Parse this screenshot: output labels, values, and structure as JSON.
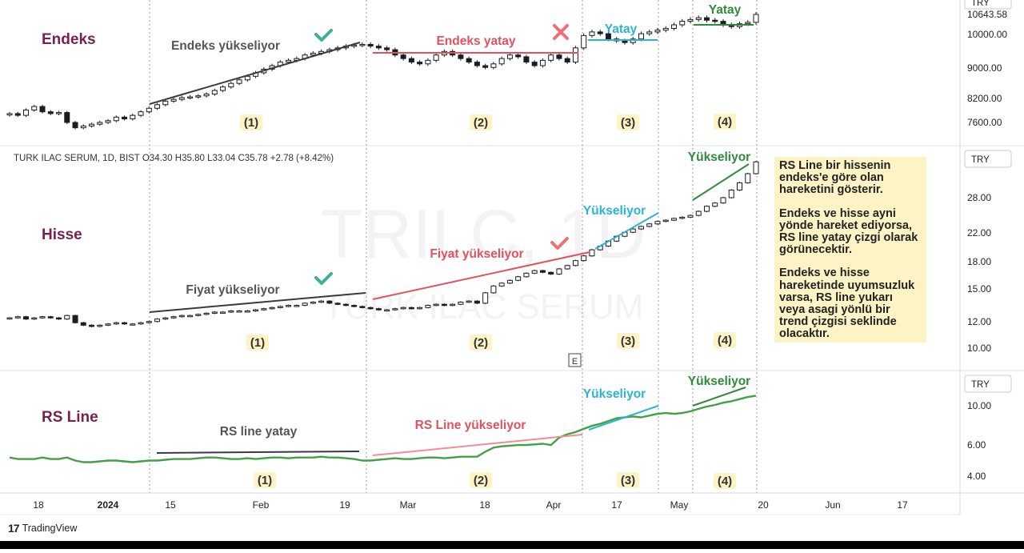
{
  "chart_data": {
    "type": "candlestick",
    "axis_currency": "TRY",
    "x_ticks": [
      "18",
      "2024",
      "15",
      "Feb",
      "19",
      "Mar",
      "18",
      "Apr",
      "17",
      "May",
      "20",
      "Jun",
      "17"
    ],
    "panels": [
      {
        "id": "endeks",
        "label": "Endeks",
        "y_ticks": [
          "10643.58",
          "10000.00",
          "9000.00",
          "8200.00",
          "7600.00"
        ],
        "y_tick_values": [
          10643.58,
          10000,
          9000,
          8200,
          7600
        ],
        "ylim": [
          7200,
          11100
        ],
        "annotations": {
          "seg1": "Endeks yükseliyor",
          "seg2": "Endeks yatay",
          "seg3": "Yatay",
          "seg4": "Yatay",
          "num1": "(1)",
          "num2": "(2)",
          "num3": "(3)",
          "num4": "(4)"
        },
        "marks": {
          "seg1": "check",
          "seg2": "cross"
        },
        "closes": [
          7850,
          7800,
          7950,
          8050,
          7900,
          7850,
          7880,
          7600,
          7450,
          7500,
          7550,
          7600,
          7650,
          7750,
          7700,
          7800,
          7900,
          8000,
          8100,
          8200,
          8250,
          8300,
          8320,
          8350,
          8400,
          8500,
          8600,
          8700,
          8800,
          8900,
          9000,
          9100,
          9200,
          9300,
          9350,
          9400,
          9500,
          9550,
          9600,
          9650,
          9700,
          9750,
          9780,
          9800,
          9750,
          9700,
          9650,
          9500,
          9400,
          9300,
          9250,
          9350,
          9500,
          9600,
          9500,
          9400,
          9300,
          9200,
          9150,
          9250,
          9400,
          9500,
          9450,
          9300,
          9200,
          9350,
          9500,
          9400,
          9300,
          9700,
          10050,
          10150,
          10100,
          9950,
          9900,
          9850,
          9950,
          10100,
          10150,
          10200,
          10250,
          10350,
          10450,
          10500,
          10550,
          10480,
          10450,
          10350,
          10300,
          10380,
          10420,
          10643.58
        ]
      },
      {
        "id": "hisse",
        "label": "Hisse",
        "y_ticks": [
          "28.00",
          "22.00",
          "18.00",
          "15.00",
          "12.00",
          "10.00"
        ],
        "y_tick_values": [
          28,
          22,
          18,
          15,
          12,
          10
        ],
        "ylim": [
          9.2,
          38
        ],
        "log": true,
        "ohlc": {
          "symbol": "TURK ILAC SERUM, 1D, BIST",
          "o": "34.30",
          "h": "35.80",
          "l": "33.04",
          "c": "35.78",
          "chg": "+2.78 (+8.42%)"
        },
        "watermark": {
          "main": "TRILC, 1D",
          "sub": "TURK ILAC SERUM"
        },
        "annotations": {
          "seg1": "Fiyat yükseliyor",
          "seg2": "Fiyat yükseliyor",
          "seg3": "Yükseliyor",
          "seg4": "Yükseliyor",
          "num1": "(1)",
          "num2": "(2)",
          "num3": "(3)",
          "num4": "(4)",
          "event": "E"
        },
        "marks": {
          "seg1": "check",
          "seg2": "check"
        },
        "closes": [
          12.3,
          12.4,
          12.2,
          12.3,
          12.4,
          12.3,
          12.2,
          12.5,
          11.9,
          11.7,
          11.6,
          11.7,
          11.8,
          11.9,
          11.8,
          11.8,
          11.9,
          12.0,
          12.2,
          12.3,
          12.4,
          12.5,
          12.5,
          12.6,
          12.7,
          12.8,
          12.8,
          12.9,
          12.9,
          12.9,
          13.0,
          13.1,
          13.2,
          13.3,
          13.4,
          13.4,
          13.6,
          13.7,
          13.8,
          13.6,
          13.5,
          13.4,
          13.3,
          13.2,
          13.1,
          13.0,
          13.0,
          13.1,
          13.2,
          13.1,
          13.2,
          13.4,
          13.5,
          13.4,
          13.5,
          13.7,
          13.8,
          13.6,
          14.6,
          15.3,
          15.6,
          15.9,
          16.3,
          16.7,
          17.0,
          16.8,
          16.6,
          17.2,
          17.6,
          18.2,
          18.8,
          19.6,
          20.1,
          20.8,
          21.5,
          22.1,
          22.6,
          23.0,
          23.4,
          23.8,
          24.0,
          24.3,
          24.5,
          24.8,
          25.5,
          26.4,
          27.0,
          28.0,
          29.5,
          31.0,
          33.0,
          35.78
        ]
      },
      {
        "id": "rsline",
        "label": "RS Line",
        "y_ticks": [
          "10.00",
          "6.00",
          "4.00"
        ],
        "y_tick_values": [
          10,
          6,
          4
        ],
        "ylim": [
          3.2,
          13
        ],
        "log": true,
        "annotations": {
          "seg1": "RS line yatay",
          "seg2": "RS Line yükseliyor",
          "seg3": "Yükseliyor",
          "seg4": "Yükseliyor",
          "num1": "(1)",
          "num2": "(2)",
          "num3": "(3)",
          "num4": "(4)"
        },
        "values": [
          5.1,
          5.0,
          5.0,
          5.0,
          5.1,
          5.0,
          5.0,
          5.1,
          4.9,
          4.8,
          4.8,
          4.85,
          4.9,
          4.9,
          4.85,
          4.8,
          4.85,
          4.9,
          4.9,
          4.95,
          5.0,
          5.0,
          5.0,
          5.05,
          5.1,
          5.1,
          5.05,
          5.0,
          5.0,
          5.05,
          5.0,
          5.05,
          5.1,
          5.1,
          5.05,
          5.1,
          5.1,
          5.1,
          5.15,
          5.1,
          5.1,
          5.05,
          5.0,
          4.9,
          4.9,
          4.95,
          5.0,
          5.05,
          5.0,
          5.0,
          5.05,
          5.1,
          5.1,
          5.05,
          5.1,
          5.15,
          5.15,
          5.15,
          5.5,
          5.8,
          5.9,
          5.95,
          6.0,
          6.0,
          6.05,
          6.1,
          6.0,
          6.6,
          6.9,
          7.1,
          7.4,
          7.7,
          7.9,
          8.2,
          8.5,
          8.6,
          8.7,
          8.6,
          8.8,
          9.0,
          9.1,
          9.0,
          9.1,
          9.3,
          9.6,
          9.9,
          10.1,
          10.4,
          10.6,
          10.9,
          11.2,
          11.4
        ]
      }
    ]
  },
  "note": {
    "p1": "RS Line bir hissenin endeks'e göre olan hareketini gösterir.",
    "p2": "Endeks ve hisse ayni yönde hareket ediyorsa, RS line yatay çizgi olarak görünecektir.",
    "p3": "Endeks ve hisse hareketinde uyumsuzluk varsa, RS line yukarı veya asagi yönlü bir trend çizgisi seklinde olacaktır."
  },
  "branding": {
    "logo": "TradingView"
  },
  "colors": {
    "panel_label": "#7a1f4e",
    "trend_dark": "#3a3a44",
    "trend_red": "#e0525e",
    "trend_cyan": "#2ab6cf",
    "trend_green": "#2e8b3a",
    "rs_line": "#43a047",
    "check": "#3ab09e",
    "cross": "#ef6f77",
    "note_bg": "#fdf3c4"
  }
}
